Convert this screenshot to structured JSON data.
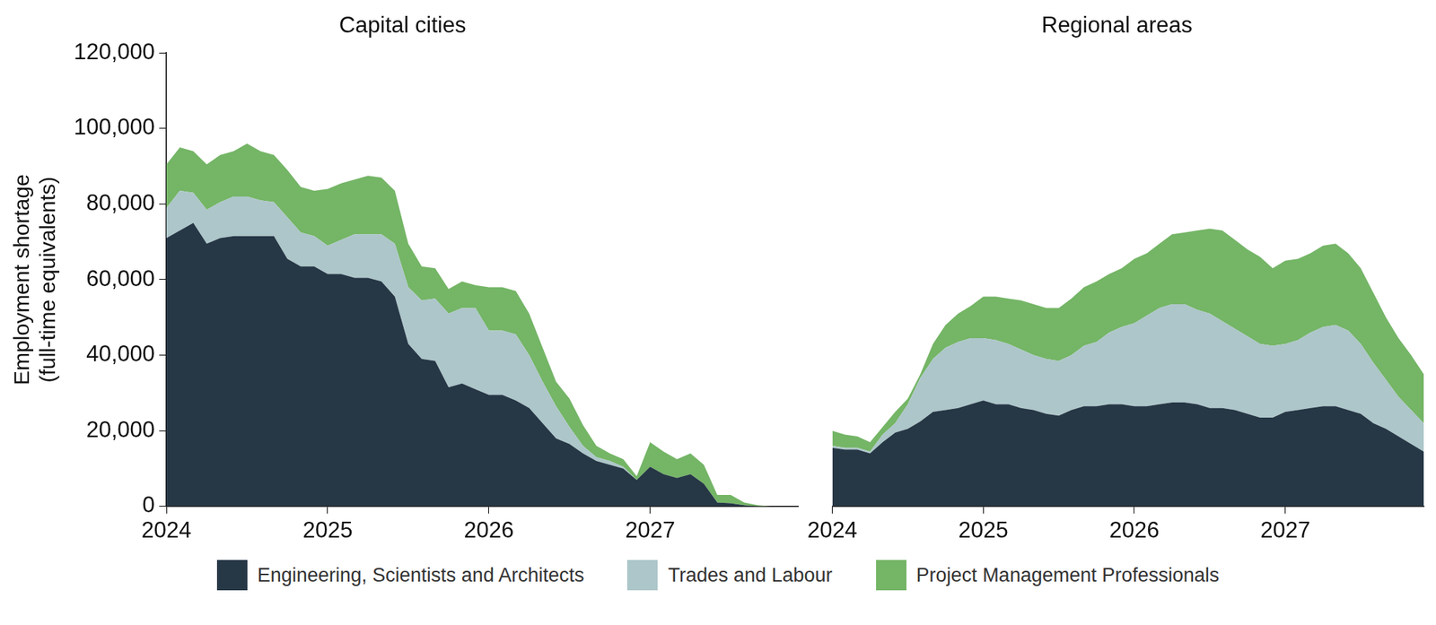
{
  "chart_data": [
    {
      "type": "area",
      "title": "Capital cities",
      "y_label": [
        "Employment shortage",
        "(full-time equivalents)"
      ],
      "categories": [
        "2024",
        null,
        null,
        null,
        null,
        null,
        null,
        null,
        null,
        null,
        null,
        null,
        "2025",
        null,
        null,
        null,
        null,
        null,
        null,
        null,
        null,
        null,
        null,
        null,
        "2026",
        null,
        null,
        null,
        null,
        null,
        null,
        null,
        null,
        null,
        null,
        null,
        "2027",
        null,
        null,
        null,
        null,
        null,
        null,
        null,
        null,
        null,
        null,
        null
      ],
      "series": [
        {
          "name": "Engineering, Scientists and Architects",
          "color": "#263746",
          "values": [
            71000,
            73000,
            75000,
            69500,
            71000,
            71500,
            71500,
            71500,
            71500,
            65500,
            63500,
            63500,
            61500,
            61500,
            60500,
            60500,
            59500,
            55500,
            43000,
            39000,
            38500,
            31500,
            32500,
            31000,
            29500,
            29500,
            28000,
            26000,
            22000,
            18000,
            16500,
            14000,
            12000,
            11000,
            10000,
            7000,
            10500,
            8500,
            7500,
            8500,
            6000,
            1000,
            800,
            300,
            0,
            0,
            0,
            0
          ]
        },
        {
          "name": "Trades and Labour",
          "color": "#adc6c9",
          "values": [
            8000,
            10500,
            8000,
            9000,
            9500,
            10500,
            10500,
            9500,
            9000,
            11000,
            9000,
            8000,
            7500,
            9000,
            11500,
            11500,
            12500,
            14000,
            15000,
            15500,
            16500,
            19500,
            20000,
            21500,
            17000,
            17000,
            17500,
            14000,
            11000,
            8500,
            4500,
            2000,
            1000,
            1000,
            500,
            0,
            0,
            0,
            0,
            0,
            0,
            0,
            0,
            0,
            0,
            0,
            0,
            0
          ]
        },
        {
          "name": "Project Management Professionals",
          "color": "#74b566",
          "values": [
            11500,
            11500,
            11000,
            12000,
            12500,
            12000,
            14000,
            13000,
            12500,
            12500,
            12000,
            12000,
            15000,
            15000,
            14500,
            15500,
            15000,
            14000,
            11500,
            9000,
            8000,
            6500,
            7000,
            6000,
            11500,
            11500,
            11500,
            11000,
            9000,
            6500,
            7500,
            5500,
            3000,
            2000,
            2000,
            1000,
            6500,
            6000,
            5000,
            5500,
            5000,
            2000,
            2200,
            700,
            300,
            0,
            0,
            0
          ]
        }
      ],
      "ylim": [
        0,
        120000
      ],
      "yticks": [
        0,
        {
          "value": 20000,
          "label": "20,000"
        },
        {
          "value": 40000,
          "label": "40,000"
        },
        {
          "value": 60000,
          "label": "60,000"
        },
        {
          "value": 80000,
          "label": "80,000"
        },
        {
          "value": 100000,
          "label": "100,000"
        },
        {
          "value": 120000,
          "label": "120,000"
        }
      ],
      "stacked": true,
      "grid": false,
      "legend": "bottom"
    },
    {
      "type": "area",
      "title": "Regional areas",
      "categories": [
        "2024",
        null,
        null,
        null,
        null,
        null,
        null,
        null,
        null,
        null,
        null,
        null,
        "2025",
        null,
        null,
        null,
        null,
        null,
        null,
        null,
        null,
        null,
        null,
        null,
        "2026",
        null,
        null,
        null,
        null,
        null,
        null,
        null,
        null,
        null,
        null,
        null,
        "2027",
        null,
        null,
        null,
        null,
        null,
        null,
        null,
        null,
        null,
        null,
        null
      ],
      "series": [
        {
          "name": "Engineering, Scientists and Architects",
          "color": "#263746",
          "values": [
            15500,
            15000,
            15000,
            14000,
            17000,
            19500,
            20500,
            22500,
            25000,
            25500,
            26000,
            27000,
            28000,
            27000,
            27000,
            26000,
            25500,
            24500,
            24000,
            25500,
            26500,
            26500,
            27000,
            27000,
            26500,
            26500,
            27000,
            27500,
            27500,
            27000,
            26000,
            26000,
            25500,
            24500,
            23500,
            23500,
            25000,
            25500,
            26000,
            26500,
            26500,
            25500,
            24500,
            22000,
            20500,
            18500,
            16500,
            14500
          ]
        },
        {
          "name": "Trades and Labour",
          "color": "#adc6c9",
          "values": [
            500,
            500,
            500,
            500,
            2000,
            2500,
            6500,
            11500,
            14000,
            16500,
            17500,
            17500,
            16500,
            17000,
            16000,
            15500,
            14500,
            14500,
            14500,
            14500,
            16000,
            17000,
            19000,
            20500,
            22000,
            24000,
            25500,
            26000,
            26000,
            25000,
            25000,
            23000,
            21500,
            20500,
            19500,
            19000,
            18000,
            18500,
            20000,
            21000,
            21500,
            21000,
            18500,
            16000,
            13000,
            10500,
            9000,
            7500
          ]
        },
        {
          "name": "Project Management Professionals",
          "color": "#74b566",
          "values": [
            4000,
            3500,
            3000,
            2500,
            2000,
            3000,
            1500,
            1000,
            4000,
            6000,
            7500,
            8500,
            11000,
            11500,
            12000,
            13000,
            13500,
            13500,
            14000,
            15000,
            15500,
            16000,
            15500,
            15500,
            17000,
            16500,
            17000,
            18500,
            19000,
            21000,
            22500,
            24000,
            23500,
            23000,
            23000,
            20500,
            22000,
            21500,
            21000,
            21500,
            21500,
            20500,
            20000,
            18500,
            16500,
            15500,
            14500,
            13000
          ]
        }
      ],
      "ylim": [
        0,
        120000
      ],
      "yticks": [
        0,
        {
          "value": 20000,
          "label": "20,000"
        },
        {
          "value": 40000,
          "label": "40,000"
        },
        {
          "value": 60000,
          "label": "60,000"
        },
        {
          "value": 80000,
          "label": "80,000"
        },
        {
          "value": 100000,
          "label": "100,000"
        },
        {
          "value": 120000,
          "label": "120,000"
        }
      ],
      "stacked": true,
      "grid": false,
      "tick_labels": "x"
    }
  ]
}
